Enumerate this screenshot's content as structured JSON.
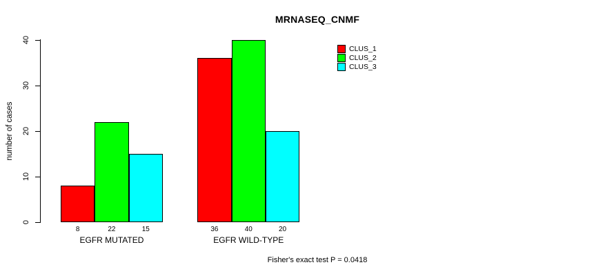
{
  "chart_data": {
    "type": "bar",
    "title": "MRNASEQ_CNMF",
    "ylabel": "number of cases",
    "xlabel": "",
    "ylim": [
      0,
      40
    ],
    "yticks": [
      0,
      10,
      20,
      30,
      40
    ],
    "grid": false,
    "categories": [
      "EGFR MUTATED",
      "EGFR WILD-TYPE"
    ],
    "series": [
      {
        "name": "CLUS_1",
        "color": "#ff0000",
        "values": [
          8,
          36
        ]
      },
      {
        "name": "CLUS_2",
        "color": "#00ff00",
        "values": [
          22,
          40
        ]
      },
      {
        "name": "CLUS_3",
        "color": "#00ffff",
        "values": [
          15,
          20
        ]
      }
    ],
    "bar_value_labels": [
      [
        8,
        22,
        15
      ],
      [
        36,
        40,
        20
      ]
    ],
    "bar_border_color": "#000000",
    "legend_position": "top-right",
    "annotation": "Fisher's exact test P = 0.0418",
    "text_color": "#000000",
    "background_color": "#ffffff"
  }
}
